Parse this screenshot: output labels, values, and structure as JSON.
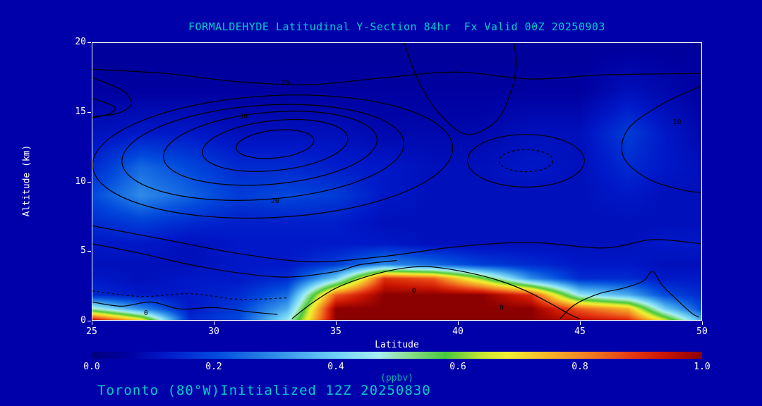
{
  "page": {
    "background": "#0000AA",
    "title_color": "#00CDCD",
    "text_color": "#FFFFFF",
    "footer": "Toronto (80°W)Initialized 12Z 20250830"
  },
  "chart_data": {
    "type": "heatmap",
    "title": "FORMALDEHYDE Latitudinal Y-Section 84hr  Fx Valid 00Z 20250903",
    "xlabel": "Latitude",
    "ylabel": "Altitude (km)",
    "xlim": [
      25,
      50
    ],
    "ylim": [
      0,
      20
    ],
    "x_ticks": [
      25,
      30,
      35,
      40,
      45,
      50
    ],
    "y_ticks": [
      0,
      5,
      10,
      15,
      20
    ],
    "grid": {
      "lat": [
        25,
        27,
        29,
        31,
        33,
        35,
        37,
        39,
        41,
        43,
        45,
        47,
        48.5,
        50
      ],
      "alt": [
        0,
        0.8,
        1.8,
        3,
        4,
        5.5,
        7,
        9,
        11,
        13.5,
        16.5,
        20
      ],
      "values_ppbv": [
        [
          0.95,
          0.7,
          0.15,
          0.2,
          0.45,
          1.0,
          1.0,
          1.0,
          1.0,
          1.0,
          0.95,
          0.9,
          0.65,
          0.35
        ],
        [
          0.5,
          0.3,
          0.12,
          0.18,
          0.35,
          1.0,
          1.0,
          1.0,
          1.0,
          1.0,
          0.85,
          0.75,
          0.4,
          0.2
        ],
        [
          0.15,
          0.12,
          0.12,
          0.15,
          0.25,
          0.85,
          1.0,
          1.0,
          1.0,
          0.9,
          0.45,
          0.35,
          0.2,
          0.15
        ],
        [
          0.12,
          0.1,
          0.12,
          0.12,
          0.15,
          0.4,
          0.9,
          0.85,
          0.6,
          0.3,
          0.15,
          0.15,
          0.12,
          0.12
        ],
        [
          0.1,
          0.1,
          0.1,
          0.12,
          0.12,
          0.18,
          0.3,
          0.25,
          0.18,
          0.15,
          0.12,
          0.12,
          0.1,
          0.1
        ],
        [
          0.12,
          0.12,
          0.1,
          0.12,
          0.12,
          0.12,
          0.12,
          0.1,
          0.1,
          0.1,
          0.1,
          0.1,
          0.12,
          0.12
        ],
        [
          0.15,
          0.18,
          0.15,
          0.13,
          0.13,
          0.13,
          0.1,
          0.1,
          0.1,
          0.1,
          0.1,
          0.1,
          0.1,
          0.1
        ],
        [
          0.2,
          0.3,
          0.24,
          0.18,
          0.2,
          0.18,
          0.12,
          0.1,
          0.1,
          0.1,
          0.1,
          0.12,
          0.1,
          0.1
        ],
        [
          0.15,
          0.25,
          0.2,
          0.15,
          0.15,
          0.13,
          0.12,
          0.1,
          0.1,
          0.12,
          0.1,
          0.15,
          0.12,
          0.1
        ],
        [
          0.1,
          0.12,
          0.12,
          0.1,
          0.1,
          0.1,
          0.08,
          0.08,
          0.08,
          0.1,
          0.1,
          0.18,
          0.12,
          0.08
        ],
        [
          0.06,
          0.06,
          0.06,
          0.06,
          0.06,
          0.06,
          0.06,
          0.06,
          0.06,
          0.06,
          0.06,
          0.1,
          0.08,
          0.06
        ],
        [
          0.05,
          0.05,
          0.05,
          0.05,
          0.05,
          0.05,
          0.05,
          0.05,
          0.05,
          0.05,
          0.05,
          0.05,
          0.05,
          0.05
        ]
      ]
    },
    "colormap_stops": [
      [
        0.0,
        "#000080"
      ],
      [
        0.06,
        "#0000A0"
      ],
      [
        0.12,
        "#0018C8"
      ],
      [
        0.2,
        "#0048DC"
      ],
      [
        0.3,
        "#2E8CE8"
      ],
      [
        0.4,
        "#6FD0F5"
      ],
      [
        0.47,
        "#A8EFF0"
      ],
      [
        0.52,
        "#8CE08C"
      ],
      [
        0.58,
        "#46C83C"
      ],
      [
        0.64,
        "#C8E632"
      ],
      [
        0.68,
        "#F0F032"
      ],
      [
        0.75,
        "#F5B428"
      ],
      [
        0.82,
        "#F07820"
      ],
      [
        0.88,
        "#E63C14"
      ],
      [
        0.94,
        "#C81400"
      ],
      [
        1.0,
        "#8B0000"
      ]
    ],
    "colorbar": {
      "range": [
        0.0,
        1.0
      ],
      "tick_labels": [
        "0.0",
        "0.2",
        "0.4",
        "0.6",
        "0.8",
        "1.0"
      ],
      "label": "(ppbv)"
    },
    "overlay_contours": {
      "color": "#000000",
      "ellipses": [
        {
          "cx": 32.5,
          "cy": 12.7,
          "rx": 1.6,
          "ry": 1.0,
          "rot": -6
        },
        {
          "cx": 32.5,
          "cy": 12.6,
          "rx": 3.0,
          "ry": 1.8,
          "rot": -6
        },
        {
          "cx": 32.3,
          "cy": 12.4,
          "rx": 4.4,
          "ry": 2.6,
          "rot": -5
        },
        {
          "cx": 32.0,
          "cy": 12.1,
          "rx": 5.8,
          "ry": 3.4,
          "rot": -4
        },
        {
          "cx": 32.4,
          "cy": 11.8,
          "rx": 7.4,
          "ry": 4.4,
          "rot": -3
        },
        {
          "cx": 42.8,
          "cy": 11.5,
          "rx": 2.4,
          "ry": 1.9,
          "rot": 0
        },
        {
          "cx": 42.8,
          "cy": 11.5,
          "rx": 1.1,
          "ry": 0.8,
          "rot": 0,
          "dashed": true
        }
      ],
      "paths": [
        {
          "points": [
            [
              25,
              18.1
            ],
            [
              28,
              17.8
            ],
            [
              31,
              17.2
            ],
            [
              34,
              17.0
            ],
            [
              37,
              17.5
            ],
            [
              40,
              17.9
            ],
            [
              43,
              17.4
            ],
            [
              46,
              17.7
            ],
            [
              50,
              17.8
            ]
          ]
        },
        {
          "points": [
            [
              25,
              6.8
            ],
            [
              28,
              5.8
            ],
            [
              31,
              4.8
            ],
            [
              34,
              4.2
            ],
            [
              37,
              4.6
            ],
            [
              40,
              5.3
            ],
            [
              43,
              5.6
            ],
            [
              46,
              5.2
            ],
            [
              48,
              5.8
            ],
            [
              50,
              5.5
            ]
          ]
        },
        {
          "points": [
            [
              25,
              5.5
            ],
            [
              27,
              4.8
            ],
            [
              29,
              4.0
            ],
            [
              31,
              3.4
            ],
            [
              33,
              3.1
            ],
            [
              35,
              3.5
            ],
            [
              36,
              4.0
            ],
            [
              37.5,
              4.3
            ]
          ]
        },
        {
          "points": [
            [
              33.2,
              0.1
            ],
            [
              34,
              1.2
            ],
            [
              35,
              2.3
            ],
            [
              36.2,
              3.1
            ],
            [
              37.6,
              3.7
            ],
            [
              38.8,
              3.85
            ],
            [
              40.2,
              3.5
            ],
            [
              41.6,
              2.9
            ],
            [
              42.8,
              2.1
            ],
            [
              43.8,
              1.2
            ],
            [
              44.6,
              0.4
            ],
            [
              45,
              0.1
            ]
          ]
        },
        {
          "points": [
            [
              44.2,
              0.1
            ],
            [
              44.8,
              1.1
            ],
            [
              45.8,
              1.9
            ],
            [
              46.8,
              2.3
            ],
            [
              47.6,
              2.8
            ],
            [
              48.0,
              3.5
            ],
            [
              48.4,
              2.5
            ],
            [
              49.1,
              1.3
            ],
            [
              49.6,
              0.5
            ],
            [
              49.9,
              0.2
            ]
          ]
        },
        {
          "points": [
            [
              50,
              16.9
            ],
            [
              48.4,
              15.6
            ],
            [
              47.0,
              13.8
            ],
            [
              46.8,
              11.8
            ],
            [
              47.8,
              10.2
            ],
            [
              49.2,
              9.4
            ],
            [
              50,
              9.2
            ]
          ]
        },
        {
          "points": [
            [
              37.8,
              20
            ],
            [
              38.4,
              17.2
            ],
            [
              39.3,
              14.8
            ],
            [
              40.4,
              13.4
            ],
            [
              41.6,
              14.4
            ],
            [
              42.2,
              16.6
            ],
            [
              42.4,
              18.5
            ],
            [
              42.3,
              20
            ]
          ]
        },
        {
          "points": [
            [
              25,
              17.5
            ],
            [
              26.2,
              16.6
            ],
            [
              26.6,
              15.6
            ],
            [
              26.0,
              14.9
            ],
            [
              25,
              14.7
            ]
          ]
        },
        {
          "points": [
            [
              25,
              16.0
            ],
            [
              25.9,
              15.4
            ],
            [
              25.7,
              14.9
            ],
            [
              25,
              14.6
            ]
          ]
        },
        {
          "points": [
            [
              25,
              1.3
            ],
            [
              26.2,
              1.0
            ],
            [
              27.4,
              1.3
            ],
            [
              28.6,
              0.8
            ],
            [
              30,
              0.9
            ],
            [
              31.4,
              0.6
            ],
            [
              32.6,
              0.4
            ]
          ]
        },
        {
          "points": [
            [
              25,
              2.1
            ],
            [
              27,
              1.7
            ],
            [
              29,
              1.9
            ],
            [
              31,
              1.5
            ],
            [
              33,
              1.6
            ]
          ],
          "dashed": true
        }
      ],
      "labels": [
        {
          "text": "70",
          "lat": 32.9,
          "alt": 17.1
        },
        {
          "text": "30",
          "lat": 31.2,
          "alt": 14.7
        },
        {
          "text": "20",
          "lat": 32.5,
          "alt": 8.6
        },
        {
          "text": "10",
          "lat": 49.0,
          "alt": 14.3
        },
        {
          "text": "0",
          "lat": 38.2,
          "alt": 2.1
        },
        {
          "text": "0",
          "lat": 41.8,
          "alt": 0.9
        },
        {
          "text": "0",
          "lat": 27.2,
          "alt": 0.5
        }
      ]
    }
  }
}
